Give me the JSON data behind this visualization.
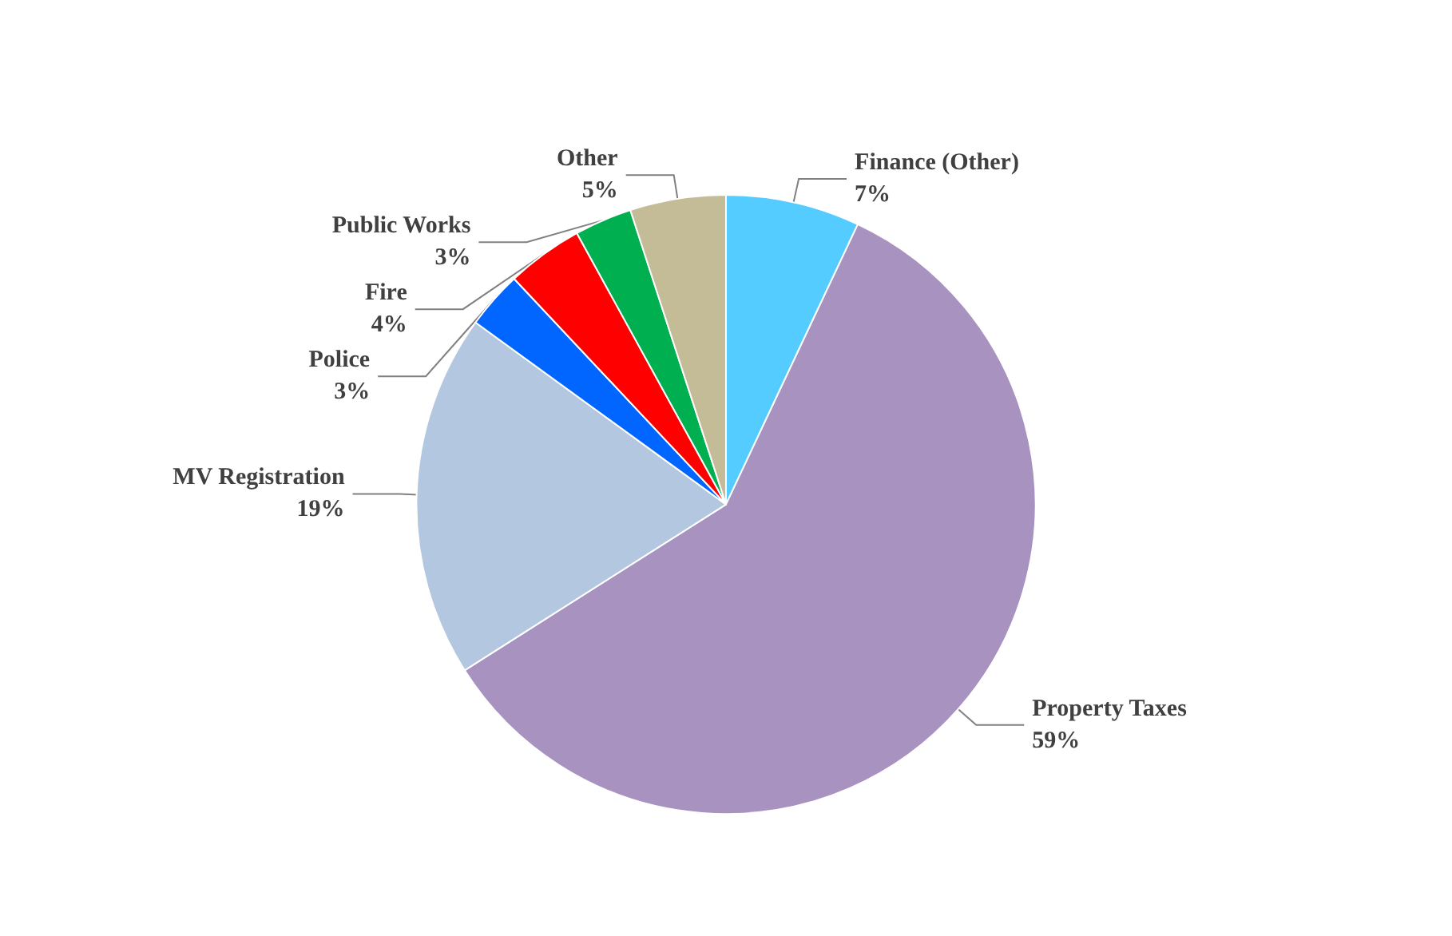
{
  "chart_data": {
    "type": "pie",
    "categories": [
      "Finance (Other)",
      "Property Taxes",
      "MV Registration",
      "Police",
      "Fire",
      "Public Works",
      "Other"
    ],
    "values": [
      7,
      59,
      19,
      3,
      4,
      3,
      5
    ],
    "value_labels": [
      "7%",
      "59%",
      "19%",
      "3%",
      "4%",
      "3%",
      "5%"
    ],
    "colors": [
      "#55ccff",
      "#a792c0",
      "#b4c7e0",
      "#0066ff",
      "#ff0000",
      "#00b050",
      "#c4bc96"
    ],
    "legend": false
  }
}
